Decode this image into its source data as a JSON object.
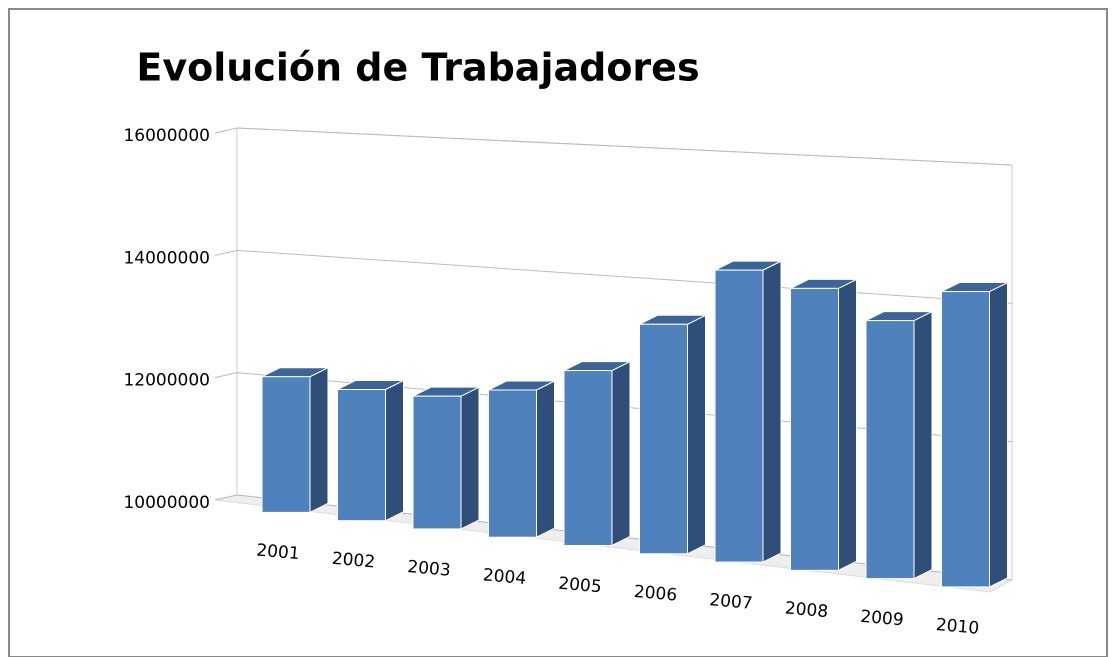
{
  "chart_data": {
    "type": "bar",
    "title": "Evolución de Trabajadores",
    "categories": [
      "2001",
      "2002",
      "2003",
      "2004",
      "2005",
      "2006",
      "2007",
      "2008",
      "2009",
      "2010"
    ],
    "values": [
      12200000,
      12100000,
      12100000,
      12300000,
      12700000,
      13500000,
      14400000,
      14200000,
      13800000,
      14300000
    ],
    "color": "#4f81bd",
    "ylim": [
      10000000,
      16000000
    ],
    "yticks": [
      10000000,
      12000000,
      14000000,
      16000000
    ],
    "grid": true
  }
}
